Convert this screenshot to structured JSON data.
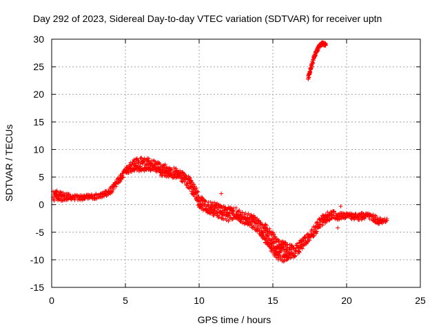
{
  "chart_data": {
    "type": "scatter",
    "title": "Day 292 of 2023, Sidereal Day-to-day VTEC variation (SDTVAR) for receiver uptn",
    "xlabel": "GPS time / hours",
    "ylabel": "SDTVAR / TECUs",
    "xlim": [
      0,
      25
    ],
    "ylim": [
      -15,
      30
    ],
    "x_ticks": [
      0,
      5,
      10,
      15,
      20,
      25
    ],
    "y_ticks": [
      -15,
      -10,
      -5,
      0,
      5,
      10,
      15,
      20,
      25,
      30
    ],
    "grid": true,
    "marker": "+",
    "series": [
      {
        "name": "SDTVAR",
        "color": "#ff0000",
        "band": [
          {
            "x": 0.1,
            "lo": 0.5,
            "hi": 2.5
          },
          {
            "x": 0.5,
            "lo": 0.6,
            "hi": 2.6
          },
          {
            "x": 1.0,
            "lo": 0.8,
            "hi": 2.0
          },
          {
            "x": 1.5,
            "lo": 0.8,
            "hi": 1.8
          },
          {
            "x": 2.0,
            "lo": 0.8,
            "hi": 1.7
          },
          {
            "x": 2.5,
            "lo": 0.9,
            "hi": 1.8
          },
          {
            "x": 3.0,
            "lo": 1.0,
            "hi": 2.0
          },
          {
            "x": 3.5,
            "lo": 1.3,
            "hi": 2.3
          },
          {
            "x": 4.0,
            "lo": 2.0,
            "hi": 3.3
          },
          {
            "x": 4.5,
            "lo": 3.5,
            "hi": 4.8
          },
          {
            "x": 5.0,
            "lo": 5.5,
            "hi": 7.0
          },
          {
            "x": 5.5,
            "lo": 6.0,
            "hi": 8.2
          },
          {
            "x": 6.0,
            "lo": 6.0,
            "hi": 8.5
          },
          {
            "x": 6.5,
            "lo": 6.0,
            "hi": 8.7
          },
          {
            "x": 7.0,
            "lo": 6.2,
            "hi": 8.0
          },
          {
            "x": 7.5,
            "lo": 5.0,
            "hi": 7.5
          },
          {
            "x": 8.0,
            "lo": 5.0,
            "hi": 7.0
          },
          {
            "x": 8.5,
            "lo": 4.5,
            "hi": 6.5
          },
          {
            "x": 9.0,
            "lo": 4.0,
            "hi": 6.0
          },
          {
            "x": 9.5,
            "lo": 2.0,
            "hi": 4.5
          },
          {
            "x": 10.0,
            "lo": -0.5,
            "hi": 2.0
          },
          {
            "x": 10.5,
            "lo": -1.5,
            "hi": 0.5
          },
          {
            "x": 11.0,
            "lo": -2.0,
            "hi": 0.5
          },
          {
            "x": 11.5,
            "lo": -2.5,
            "hi": 0.0
          },
          {
            "x": 12.0,
            "lo": -3.0,
            "hi": -0.5
          },
          {
            "x": 12.5,
            "lo": -2.5,
            "hi": -0.5
          },
          {
            "x": 13.0,
            "lo": -3.5,
            "hi": -1.5
          },
          {
            "x": 13.5,
            "lo": -4.0,
            "hi": -1.5
          },
          {
            "x": 14.0,
            "lo": -5.0,
            "hi": -2.5
          },
          {
            "x": 14.5,
            "lo": -7.0,
            "hi": -3.5
          },
          {
            "x": 15.0,
            "lo": -9.0,
            "hi": -5.0
          },
          {
            "x": 15.5,
            "lo": -10.5,
            "hi": -6.5
          },
          {
            "x": 16.0,
            "lo": -10.0,
            "hi": -7.0
          },
          {
            "x": 16.5,
            "lo": -9.5,
            "hi": -7.5
          },
          {
            "x": 17.0,
            "lo": -8.0,
            "hi": -6.0
          },
          {
            "x": 17.5,
            "lo": -6.5,
            "hi": -5.0
          },
          {
            "x": 18.0,
            "lo": -5.0,
            "hi": -3.0
          },
          {
            "x": 18.5,
            "lo": -3.5,
            "hi": -1.5
          },
          {
            "x": 19.0,
            "lo": -2.5,
            "hi": -1.0
          },
          {
            "x": 19.5,
            "lo": -3.0,
            "hi": -1.5
          },
          {
            "x": 20.0,
            "lo": -2.5,
            "hi": -1.5
          },
          {
            "x": 20.5,
            "lo": -2.8,
            "hi": -1.5
          },
          {
            "x": 21.0,
            "lo": -2.8,
            "hi": -1.5
          },
          {
            "x": 21.5,
            "lo": -2.5,
            "hi": -1.5
          },
          {
            "x": 22.0,
            "lo": -3.5,
            "hi": -2.0
          },
          {
            "x": 22.5,
            "lo": -3.5,
            "hi": -2.5
          },
          {
            "x": 22.8,
            "lo": -3.5,
            "hi": -2.5
          }
        ],
        "arc": [
          {
            "x": 17.4,
            "y": 23.0
          },
          {
            "x": 17.6,
            "y": 25.0
          },
          {
            "x": 17.8,
            "y": 26.8
          },
          {
            "x": 18.0,
            "y": 28.0
          },
          {
            "x": 18.2,
            "y": 29.0
          },
          {
            "x": 18.4,
            "y": 29.2
          },
          {
            "x": 18.6,
            "y": 29.0
          }
        ],
        "outliers": [
          {
            "x": 11.5,
            "y": 2.0
          },
          {
            "x": 19.4,
            "y": -4.2
          },
          {
            "x": 19.6,
            "y": -0.3
          }
        ]
      }
    ]
  }
}
